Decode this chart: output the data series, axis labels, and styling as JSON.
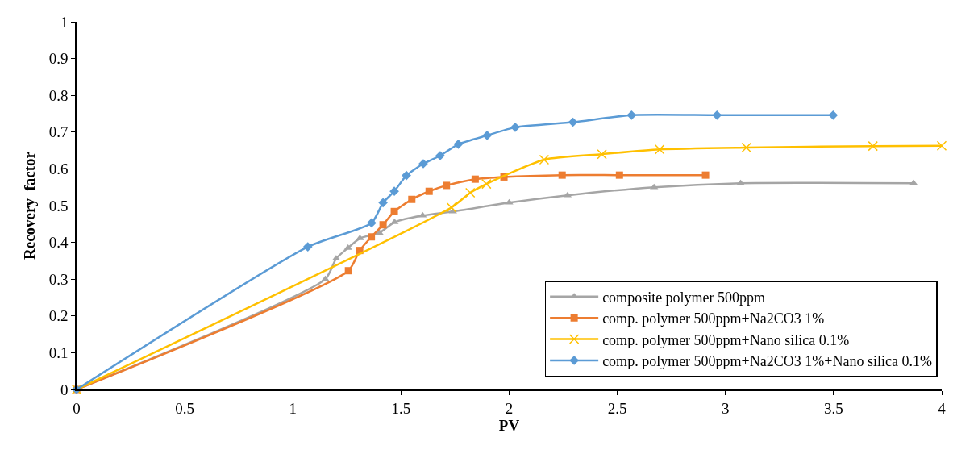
{
  "chart_data": {
    "type": "line",
    "xlabel": "PV",
    "ylabel": "Recovery  factor",
    "xlim": [
      0,
      4
    ],
    "xticks": [
      0,
      0.5,
      1,
      1.5,
      2,
      2.5,
      3,
      3.5,
      4
    ],
    "ylim": [
      0,
      1
    ],
    "yticks": [
      0,
      0.1,
      0.2,
      0.3,
      0.4,
      0.5,
      0.6,
      0.7,
      0.8,
      0.9,
      1
    ],
    "legend": "bottom right",
    "line_style": "solid",
    "series": [
      {
        "name": "composite polymer 500ppm",
        "color": "#a5a5a5",
        "marker": "triangle",
        "x": [
          0,
          1.15,
          1.2,
          1.255,
          1.31,
          1.4,
          1.47,
          1.6,
          1.74,
          2.0,
          2.27,
          2.67,
          3.07,
          3.87
        ],
        "values": [
          0,
          0.3,
          0.356,
          0.385,
          0.411,
          0.426,
          0.455,
          0.473,
          0.484,
          0.508,
          0.528,
          0.55,
          0.561,
          0.561
        ]
      },
      {
        "name": "comp. polymer 500ppm+Na2CO3 1%",
        "color": "#ed7d31",
        "marker": "square",
        "x": [
          0,
          1.257,
          1.309,
          1.363,
          1.417,
          1.469,
          1.55,
          1.63,
          1.71,
          1.843,
          1.976,
          2.245,
          2.51,
          2.908
        ],
        "values": [
          0,
          0.323,
          0.378,
          0.415,
          0.448,
          0.484,
          0.517,
          0.539,
          0.555,
          0.572,
          0.578,
          0.583,
          0.583,
          0.583
        ]
      },
      {
        "name": "comp. polymer 500ppm+Nano silica 0.1%",
        "color": "#ffc000",
        "marker": "cross",
        "x": [
          0,
          1.733,
          1.82,
          1.895,
          2.162,
          2.429,
          2.696,
          3.097,
          3.682,
          4.0
        ],
        "values": [
          0,
          0.495,
          0.535,
          0.559,
          0.625,
          0.64,
          0.653,
          0.658,
          0.662,
          0.663
        ]
      },
      {
        "name": "comp. polymer 500ppm+Na2CO3 1%+Nano silica 0.1%",
        "color": "#5b9bd5",
        "marker": "diamond",
        "x": [
          0,
          1.069,
          1.364,
          1.417,
          1.469,
          1.525,
          1.603,
          1.681,
          1.765,
          1.898,
          2.028,
          2.295,
          2.566,
          2.961,
          3.498
        ],
        "values": [
          0,
          0.388,
          0.453,
          0.508,
          0.539,
          0.582,
          0.614,
          0.636,
          0.667,
          0.691,
          0.713,
          0.727,
          0.746,
          0.746,
          0.746
        ]
      }
    ]
  }
}
